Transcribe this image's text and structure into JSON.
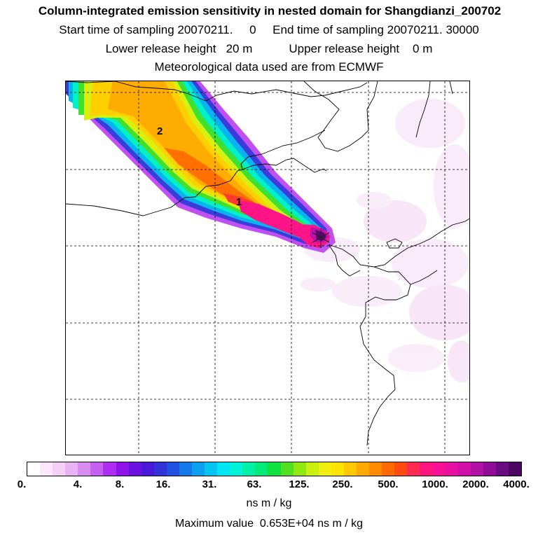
{
  "header": {
    "title": "Column-integrated emission sensitivity in nested domain for Shangdianzi_200702",
    "sampling_line": "Start time of sampling 20070211.     0     End time of sampling 20070211. 30000",
    "release_line": "Lower release height   20 m           Upper release height    0 m",
    "met_line": "Meteorological data used are from ECMWF"
  },
  "map": {
    "labels": [
      "1",
      "2"
    ]
  },
  "colorbar": {
    "ticks": [
      "0.",
      "4.",
      "8.",
      "16.",
      "31.",
      "63.",
      "125.",
      "250.",
      "500.",
      "1000.",
      "2000.",
      "4000."
    ],
    "colors": [
      "#ffffff",
      "#fbe6fb",
      "#f3cef5",
      "#e9b2f3",
      "#d98cf0",
      "#c45ff0",
      "#ad2ef2",
      "#8f12ea",
      "#6a10e0",
      "#4a18d8",
      "#3232d8",
      "#2050e0",
      "#1478e8",
      "#0aa0f0",
      "#04c4f4",
      "#00e6f4",
      "#00f2d8",
      "#00f0a8",
      "#00ea78",
      "#10e040",
      "#50e020",
      "#90e810",
      "#c8f010",
      "#f0f010",
      "#ffe400",
      "#ffc800",
      "#ffaa00",
      "#ff8a00",
      "#ff6a00",
      "#ff4a10",
      "#ff2a50",
      "#ff1480",
      "#f81094",
      "#e810a0",
      "#d010a8",
      "#b010a4",
      "#900c98",
      "#6a0a80",
      "#4a0660"
    ],
    "unit": "ns m / kg"
  },
  "footer": {
    "max_value": "Maximum value  0.653E+04 ns m / kg"
  }
}
